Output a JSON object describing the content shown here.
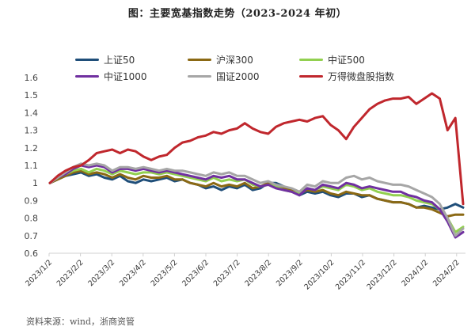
{
  "title": "图：主要宽基指数走势（2023-2024 年初）",
  "source": "资料来源：wind，浙商资管",
  "chart_data": {
    "type": "line",
    "title": "图：主要宽基指数走势（2023-2024 年初）",
    "xlabel": "",
    "ylabel": "",
    "ylim": [
      0.6,
      1.6
    ],
    "yticks": [
      "1.6",
      "1.5",
      "1.4",
      "1.3",
      "1.2",
      "1.1",
      "1",
      "0.9",
      "0.8",
      "0.7",
      "0.6"
    ],
    "xticks": [
      "2023/1/2",
      "2023/2/2",
      "2023/3/2",
      "2023/4/2",
      "2023/5/2",
      "2023/6/2",
      "2023/7/2",
      "2023/8/2",
      "2023/9/2",
      "2023/10/2",
      "2023/11/2",
      "2023/12/2",
      "2024/1/2",
      "2024/2/2"
    ],
    "grid": false,
    "legend_position": "top",
    "series": [
      {
        "name": "上证50",
        "color": "#1f4e79",
        "values": [
          1.0,
          1.02,
          1.04,
          1.05,
          1.06,
          1.04,
          1.05,
          1.03,
          1.02,
          1.04,
          1.01,
          1.0,
          1.02,
          1.01,
          1.02,
          1.03,
          1.01,
          1.02,
          1.0,
          0.99,
          0.97,
          0.98,
          0.96,
          0.98,
          0.97,
          0.99,
          0.96,
          0.97,
          1.0,
          1.0,
          0.98,
          0.96,
          0.93,
          0.95,
          0.94,
          0.95,
          0.93,
          0.92,
          0.94,
          0.94,
          0.92,
          0.93,
          0.91,
          0.9,
          0.89,
          0.89,
          0.88,
          0.86,
          0.87,
          0.86,
          0.85,
          0.86,
          0.88,
          0.86
        ]
      },
      {
        "name": "沪深300",
        "color": "#8b6914",
        "values": [
          1.0,
          1.02,
          1.04,
          1.06,
          1.07,
          1.05,
          1.06,
          1.05,
          1.03,
          1.05,
          1.03,
          1.02,
          1.04,
          1.03,
          1.03,
          1.04,
          1.02,
          1.02,
          1.0,
          0.99,
          0.98,
          1.0,
          0.98,
          0.99,
          0.98,
          1.0,
          0.97,
          0.98,
          1.0,
          0.99,
          0.97,
          0.96,
          0.94,
          0.96,
          0.95,
          0.96,
          0.94,
          0.93,
          0.95,
          0.94,
          0.93,
          0.93,
          0.91,
          0.9,
          0.89,
          0.89,
          0.88,
          0.86,
          0.86,
          0.85,
          0.83,
          0.81,
          0.82,
          0.82
        ]
      },
      {
        "name": "中证500",
        "color": "#92d050",
        "values": [
          1.0,
          1.03,
          1.05,
          1.07,
          1.08,
          1.06,
          1.08,
          1.07,
          1.05,
          1.07,
          1.06,
          1.05,
          1.06,
          1.06,
          1.05,
          1.06,
          1.05,
          1.04,
          1.03,
          1.02,
          1.01,
          1.03,
          1.01,
          1.02,
          1.01,
          1.02,
          0.99,
          0.98,
          0.99,
          0.98,
          0.96,
          0.95,
          0.94,
          0.97,
          0.96,
          0.98,
          0.97,
          0.96,
          0.99,
          0.98,
          0.96,
          0.97,
          0.95,
          0.94,
          0.93,
          0.93,
          0.92,
          0.9,
          0.89,
          0.88,
          0.85,
          0.8,
          0.72,
          0.75
        ]
      },
      {
        "name": "中证1000",
        "color": "#7030a0",
        "values": [
          1.0,
          1.03,
          1.05,
          1.08,
          1.1,
          1.09,
          1.1,
          1.09,
          1.06,
          1.08,
          1.08,
          1.07,
          1.08,
          1.07,
          1.06,
          1.07,
          1.06,
          1.05,
          1.04,
          1.03,
          1.02,
          1.04,
          1.03,
          1.04,
          1.02,
          1.02,
          1.0,
          0.98,
          0.99,
          0.97,
          0.96,
          0.95,
          0.93,
          0.97,
          0.96,
          0.99,
          0.98,
          0.97,
          1.0,
          0.99,
          0.97,
          0.98,
          0.97,
          0.96,
          0.95,
          0.95,
          0.93,
          0.92,
          0.9,
          0.89,
          0.85,
          0.78,
          0.69,
          0.72
        ]
      },
      {
        "name": "国证2000",
        "color": "#a6a6a6",
        "values": [
          1.0,
          1.03,
          1.06,
          1.09,
          1.11,
          1.1,
          1.11,
          1.1,
          1.07,
          1.09,
          1.09,
          1.08,
          1.09,
          1.08,
          1.07,
          1.08,
          1.07,
          1.07,
          1.06,
          1.05,
          1.04,
          1.06,
          1.05,
          1.06,
          1.04,
          1.04,
          1.02,
          1.0,
          1.01,
          0.99,
          0.98,
          0.97,
          0.95,
          0.99,
          0.98,
          1.01,
          1.0,
          1.0,
          1.03,
          1.04,
          1.02,
          1.03,
          1.01,
          1.0,
          0.99,
          0.99,
          0.98,
          0.96,
          0.94,
          0.92,
          0.88,
          0.8,
          0.7,
          0.74
        ]
      },
      {
        "name": "万得微盘股指数",
        "color": "#c0272d",
        "values": [
          1.0,
          1.04,
          1.07,
          1.09,
          1.1,
          1.13,
          1.17,
          1.18,
          1.19,
          1.17,
          1.19,
          1.18,
          1.15,
          1.13,
          1.15,
          1.16,
          1.2,
          1.23,
          1.24,
          1.26,
          1.27,
          1.29,
          1.28,
          1.3,
          1.31,
          1.34,
          1.31,
          1.29,
          1.28,
          1.32,
          1.34,
          1.35,
          1.36,
          1.35,
          1.37,
          1.38,
          1.33,
          1.3,
          1.25,
          1.32,
          1.37,
          1.42,
          1.45,
          1.47,
          1.48,
          1.48,
          1.49,
          1.45,
          1.48,
          1.51,
          1.48,
          1.3,
          1.37,
          0.88
        ]
      }
    ]
  },
  "legend": [
    {
      "label": "上证50",
      "color": "#1f4e79"
    },
    {
      "label": "沪深300",
      "color": "#8b6914"
    },
    {
      "label": "中证500",
      "color": "#92d050"
    },
    {
      "label": "中证1000",
      "color": "#7030a0"
    },
    {
      "label": "国证2000",
      "color": "#a6a6a6"
    },
    {
      "label": "万得微盘股指数",
      "color": "#c0272d"
    }
  ]
}
